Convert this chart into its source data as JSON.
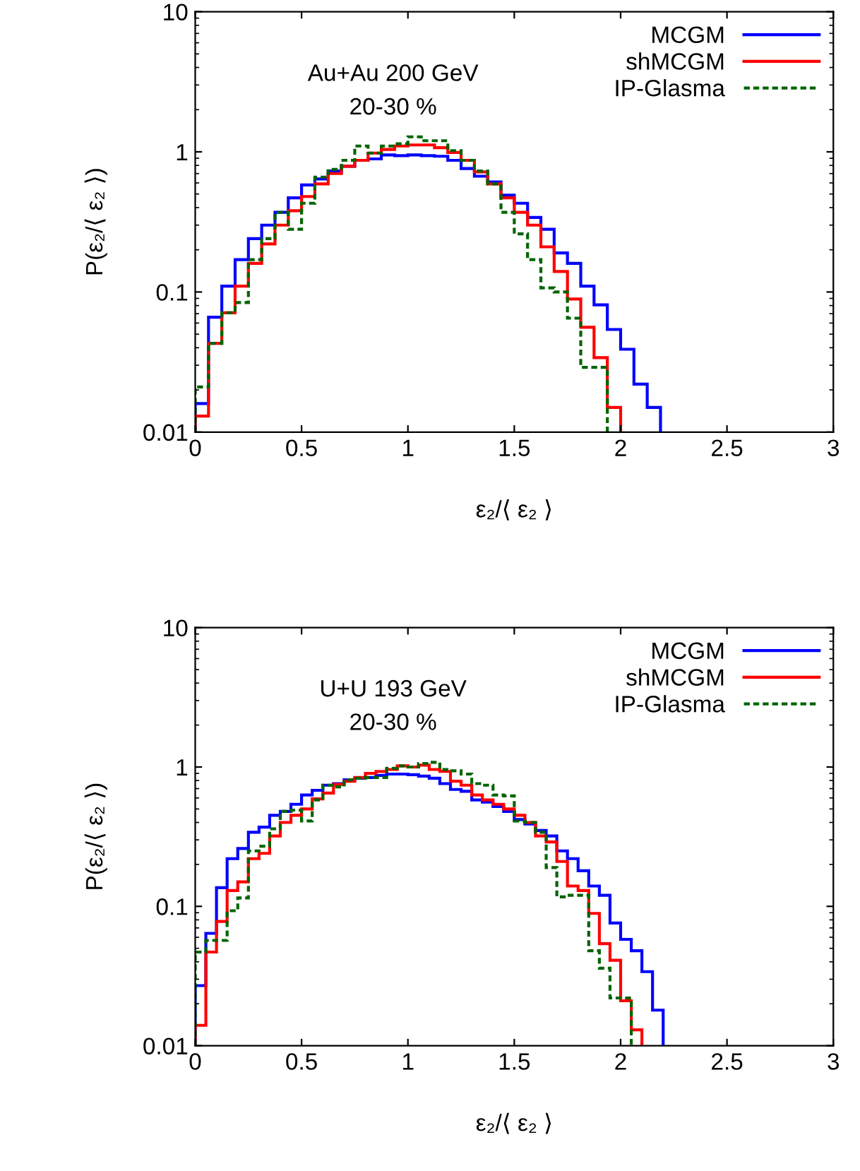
{
  "chart_data": [
    {
      "type": "histogram",
      "xlabel": "ε₂/⟨ ε₂ ⟩",
      "ylabel": "P(ε₂/⟨ ε₂ ⟩)",
      "annotations": [
        "Au+Au 200 GeV",
        "20-30 %"
      ],
      "bins": [
        0,
        0.0625,
        0.125,
        0.1875,
        0.25,
        0.3125,
        0.375,
        0.4375,
        0.5,
        0.5625,
        0.625,
        0.6875,
        0.75,
        0.8125,
        0.875,
        0.9375,
        1,
        1.0625,
        1.125,
        1.1875,
        1.25,
        1.3125,
        1.375,
        1.4375,
        1.5,
        1.5625,
        1.625,
        1.6875,
        1.75,
        1.8125,
        1.875,
        1.9375,
        2,
        2.0625,
        2.125,
        2.1875
      ],
      "series": [
        {
          "name": "MCGM",
          "color": "#0000ff",
          "line_style": "solid",
          "values": [
            0.016,
            0.066,
            0.11,
            0.17,
            0.24,
            0.3,
            0.37,
            0.47,
            0.58,
            0.64,
            0.73,
            0.79,
            0.87,
            0.89,
            0.95,
            0.94,
            0.95,
            0.94,
            0.93,
            0.87,
            0.76,
            0.67,
            0.61,
            0.49,
            0.43,
            0.34,
            0.28,
            0.19,
            0.16,
            0.11,
            0.081,
            0.054,
            0.039,
            0.022,
            0.015
          ]
        },
        {
          "name": "shMCGM",
          "color": "#ff0000",
          "line_style": "solid",
          "bins": [
            0,
            0.0625,
            0.125,
            0.1875,
            0.25,
            0.3125,
            0.375,
            0.4375,
            0.5,
            0.5625,
            0.625,
            0.6875,
            0.75,
            0.8125,
            0.875,
            0.9375,
            1,
            1.0625,
            1.125,
            1.1875,
            1.25,
            1.3125,
            1.375,
            1.4375,
            1.5,
            1.5625,
            1.625,
            1.6875,
            1.75,
            1.8125,
            1.875,
            1.9375,
            2
          ],
          "values": [
            0.013,
            0.043,
            0.071,
            0.11,
            0.16,
            0.22,
            0.3,
            0.38,
            0.48,
            0.59,
            0.7,
            0.79,
            0.87,
            0.98,
            1.04,
            1.1,
            1.12,
            1.12,
            1.07,
            0.99,
            0.87,
            0.72,
            0.59,
            0.47,
            0.37,
            0.3,
            0.21,
            0.14,
            0.089,
            0.056,
            0.034,
            0.015
          ]
        },
        {
          "name": "IP-Glasma",
          "color": "#006400",
          "line_style": "dashed",
          "bins": [
            0,
            0.0625,
            0.125,
            0.1875,
            0.25,
            0.3125,
            0.375,
            0.4375,
            0.5,
            0.5625,
            0.625,
            0.6875,
            0.75,
            0.8125,
            0.875,
            0.9375,
            1,
            1.0625,
            1.125,
            1.1875,
            1.25,
            1.3125,
            1.375,
            1.4375,
            1.5,
            1.5625,
            1.625,
            1.6875,
            1.75,
            1.8125,
            1.875,
            1.9375
          ],
          "values": [
            0.021,
            0.043,
            0.071,
            0.084,
            0.17,
            0.24,
            0.37,
            0.28,
            0.43,
            0.66,
            0.75,
            0.87,
            1.1,
            0.98,
            1.1,
            1.14,
            1.28,
            1.2,
            1.2,
            1.02,
            0.87,
            0.73,
            0.59,
            0.37,
            0.26,
            0.17,
            0.107,
            0.1,
            0.065,
            0.029,
            0.029
          ]
        }
      ],
      "xlim": [
        0,
        3
      ],
      "ylim": [
        0.01,
        10
      ],
      "xticks": [
        0,
        0.5,
        1,
        1.5,
        2,
        2.5,
        3
      ],
      "yticks": [
        0.01,
        0.1,
        1,
        10
      ],
      "log": "y",
      "legend": "top right",
      "grid": false
    },
    {
      "type": "histogram",
      "xlabel": "ε₂/⟨ ε₂ ⟩",
      "ylabel": "P(ε₂/⟨ ε₂ ⟩)",
      "annotations": [
        "U+U 193 GeV",
        "20-30 %"
      ],
      "bins": [
        0,
        0.05,
        0.1,
        0.15,
        0.2,
        0.25,
        0.3,
        0.35,
        0.4,
        0.45,
        0.5,
        0.55,
        0.6,
        0.65,
        0.7,
        0.75,
        0.8,
        0.85,
        0.9,
        0.95,
        1,
        1.05,
        1.1,
        1.15,
        1.2,
        1.25,
        1.3,
        1.35,
        1.4,
        1.45,
        1.5,
        1.55,
        1.6,
        1.65,
        1.7,
        1.75,
        1.8,
        1.85,
        1.9,
        1.95,
        2,
        2.05,
        2.1,
        2.15,
        2.2
      ],
      "series": [
        {
          "name": "MCGM",
          "color": "#0000ff",
          "line_style": "solid",
          "values": [
            0.027,
            0.064,
            0.136,
            0.22,
            0.26,
            0.34,
            0.37,
            0.45,
            0.48,
            0.54,
            0.63,
            0.68,
            0.74,
            0.76,
            0.81,
            0.83,
            0.84,
            0.87,
            0.89,
            0.89,
            0.88,
            0.86,
            0.83,
            0.76,
            0.69,
            0.67,
            0.58,
            0.56,
            0.52,
            0.48,
            0.42,
            0.39,
            0.35,
            0.32,
            0.25,
            0.22,
            0.18,
            0.14,
            0.12,
            0.076,
            0.058,
            0.048,
            0.034,
            0.018
          ]
        },
        {
          "name": "shMCGM",
          "color": "#ff0000",
          "line_style": "solid",
          "bins": [
            0,
            0.05,
            0.1,
            0.15,
            0.2,
            0.25,
            0.3,
            0.35,
            0.4,
            0.45,
            0.5,
            0.55,
            0.6,
            0.65,
            0.7,
            0.75,
            0.8,
            0.85,
            0.9,
            0.95,
            1,
            1.05,
            1.1,
            1.15,
            1.2,
            1.25,
            1.3,
            1.35,
            1.4,
            1.45,
            1.5,
            1.55,
            1.6,
            1.65,
            1.7,
            1.75,
            1.8,
            1.85,
            1.9,
            1.95,
            2,
            2.05,
            2.1
          ],
          "values": [
            0.014,
            0.047,
            0.078,
            0.13,
            0.15,
            0.22,
            0.24,
            0.32,
            0.4,
            0.45,
            0.5,
            0.59,
            0.65,
            0.75,
            0.79,
            0.84,
            0.9,
            0.93,
            0.96,
            1.02,
            1.0,
            1.03,
            0.96,
            0.93,
            0.79,
            0.74,
            0.63,
            0.58,
            0.54,
            0.5,
            0.45,
            0.4,
            0.32,
            0.29,
            0.21,
            0.14,
            0.13,
            0.089,
            0.054,
            0.041,
            0.021,
            0.013
          ]
        },
        {
          "name": "IP-Glasma",
          "color": "#006400",
          "line_style": "dashed",
          "bins": [
            0,
            0.05,
            0.1,
            0.15,
            0.2,
            0.25,
            0.3,
            0.35,
            0.4,
            0.45,
            0.5,
            0.55,
            0.6,
            0.65,
            0.7,
            0.75,
            0.8,
            0.85,
            0.9,
            0.95,
            1,
            1.05,
            1.1,
            1.15,
            1.2,
            1.25,
            1.3,
            1.35,
            1.4,
            1.45,
            1.5,
            1.55,
            1.6,
            1.65,
            1.7,
            1.75,
            1.8,
            1.85,
            1.9,
            1.95,
            2,
            2.05
          ],
          "values": [
            0.047,
            0.057,
            0.057,
            0.093,
            0.115,
            0.25,
            0.27,
            0.36,
            0.48,
            0.49,
            0.41,
            0.58,
            0.74,
            0.72,
            0.81,
            0.83,
            0.84,
            0.84,
            0.98,
            1.02,
            1.0,
            1.06,
            1.08,
            0.96,
            0.94,
            0.89,
            0.76,
            0.74,
            0.63,
            0.62,
            0.41,
            0.4,
            0.34,
            0.19,
            0.117,
            0.12,
            0.12,
            0.048,
            0.036,
            0.022,
            0.022
          ]
        }
      ],
      "xlim": [
        0,
        3
      ],
      "ylim": [
        0.01,
        10
      ],
      "xticks": [
        0,
        0.5,
        1,
        1.5,
        2,
        2.5,
        3
      ],
      "yticks": [
        0.01,
        0.1,
        1,
        10
      ],
      "log": "y",
      "legend": "top right",
      "grid": false
    }
  ]
}
